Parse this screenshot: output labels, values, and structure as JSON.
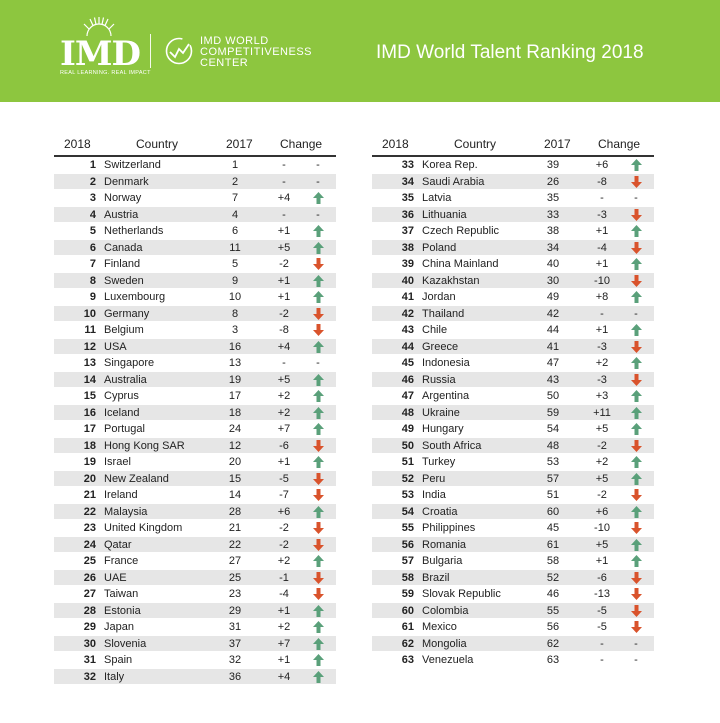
{
  "header": {
    "logo": "IMD",
    "tagline": "REAL LEARNING. REAL IMPACT",
    "center_lines": [
      "IMD WORLD",
      "COMPETITIVENESS",
      "CENTER"
    ],
    "title": "IMD World Talent Ranking 2018"
  },
  "colors": {
    "banner": "#8dc63f",
    "up": "#5aa07a",
    "down": "#d9532c",
    "shade": "#e6e6e6"
  },
  "columns": {
    "rank": "2018",
    "country": "Country",
    "prev": "2017",
    "change": "Change"
  },
  "left_rows": [
    {
      "rank": "1",
      "country": "Switzerland",
      "prev": "1",
      "change": "-",
      "dir": "none"
    },
    {
      "rank": "2",
      "country": "Denmark",
      "prev": "2",
      "change": "-",
      "dir": "none"
    },
    {
      "rank": "3",
      "country": "Norway",
      "prev": "7",
      "change": "+4",
      "dir": "up"
    },
    {
      "rank": "4",
      "country": "Austria",
      "prev": "4",
      "change": "-",
      "dir": "none"
    },
    {
      "rank": "5",
      "country": "Netherlands",
      "prev": "6",
      "change": "+1",
      "dir": "up"
    },
    {
      "rank": "6",
      "country": "Canada",
      "prev": "11",
      "change": "+5",
      "dir": "up"
    },
    {
      "rank": "7",
      "country": "Finland",
      "prev": "5",
      "change": "-2",
      "dir": "down"
    },
    {
      "rank": "8",
      "country": "Sweden",
      "prev": "9",
      "change": "+1",
      "dir": "up"
    },
    {
      "rank": "9",
      "country": "Luxembourg",
      "prev": "10",
      "change": "+1",
      "dir": "up"
    },
    {
      "rank": "10",
      "country": "Germany",
      "prev": "8",
      "change": "-2",
      "dir": "down"
    },
    {
      "rank": "11",
      "country": "Belgium",
      "prev": "3",
      "change": "-8",
      "dir": "down"
    },
    {
      "rank": "12",
      "country": "USA",
      "prev": "16",
      "change": "+4",
      "dir": "up"
    },
    {
      "rank": "13",
      "country": "Singapore",
      "prev": "13",
      "change": "-",
      "dir": "none"
    },
    {
      "rank": "14",
      "country": "Australia",
      "prev": "19",
      "change": "+5",
      "dir": "up"
    },
    {
      "rank": "15",
      "country": "Cyprus",
      "prev": "17",
      "change": "+2",
      "dir": "up"
    },
    {
      "rank": "16",
      "country": "Iceland",
      "prev": "18",
      "change": "+2",
      "dir": "up"
    },
    {
      "rank": "17",
      "country": "Portugal",
      "prev": "24",
      "change": "+7",
      "dir": "up"
    },
    {
      "rank": "18",
      "country": "Hong Kong SAR",
      "prev": "12",
      "change": "-6",
      "dir": "down"
    },
    {
      "rank": "19",
      "country": "Israel",
      "prev": "20",
      "change": "+1",
      "dir": "up"
    },
    {
      "rank": "20",
      "country": "New Zealand",
      "prev": "15",
      "change": "-5",
      "dir": "down"
    },
    {
      "rank": "21",
      "country": "Ireland",
      "prev": "14",
      "change": "-7",
      "dir": "down"
    },
    {
      "rank": "22",
      "country": "Malaysia",
      "prev": "28",
      "change": "+6",
      "dir": "up"
    },
    {
      "rank": "23",
      "country": "United Kingdom",
      "prev": "21",
      "change": "-2",
      "dir": "down"
    },
    {
      "rank": "24",
      "country": "Qatar",
      "prev": "22",
      "change": "-2",
      "dir": "down"
    },
    {
      "rank": "25",
      "country": "France",
      "prev": "27",
      "change": "+2",
      "dir": "up"
    },
    {
      "rank": "26",
      "country": "UAE",
      "prev": "25",
      "change": "-1",
      "dir": "down"
    },
    {
      "rank": "27",
      "country": "Taiwan",
      "prev": "23",
      "change": "-4",
      "dir": "down"
    },
    {
      "rank": "28",
      "country": "Estonia",
      "prev": "29",
      "change": "+1",
      "dir": "up"
    },
    {
      "rank": "29",
      "country": "Japan",
      "prev": "31",
      "change": "+2",
      "dir": "up"
    },
    {
      "rank": "30",
      "country": "Slovenia",
      "prev": "37",
      "change": "+7",
      "dir": "up"
    },
    {
      "rank": "31",
      "country": "Spain",
      "prev": "32",
      "change": "+1",
      "dir": "up"
    },
    {
      "rank": "32",
      "country": "Italy",
      "prev": "36",
      "change": "+4",
      "dir": "up"
    }
  ],
  "right_rows": [
    {
      "rank": "33",
      "country": "Korea Rep.",
      "prev": "39",
      "change": "+6",
      "dir": "up"
    },
    {
      "rank": "34",
      "country": "Saudi Arabia",
      "prev": "26",
      "change": "-8",
      "dir": "down"
    },
    {
      "rank": "35",
      "country": "Latvia",
      "prev": "35",
      "change": "-",
      "dir": "none"
    },
    {
      "rank": "36",
      "country": "Lithuania",
      "prev": "33",
      "change": "-3",
      "dir": "down"
    },
    {
      "rank": "37",
      "country": "Czech Republic",
      "prev": "38",
      "change": "+1",
      "dir": "up"
    },
    {
      "rank": "38",
      "country": "Poland",
      "prev": "34",
      "change": "-4",
      "dir": "down"
    },
    {
      "rank": "39",
      "country": "China Mainland",
      "prev": "40",
      "change": "+1",
      "dir": "up"
    },
    {
      "rank": "40",
      "country": "Kazakhstan",
      "prev": "30",
      "change": "-10",
      "dir": "down"
    },
    {
      "rank": "41",
      "country": "Jordan",
      "prev": "49",
      "change": "+8",
      "dir": "up"
    },
    {
      "rank": "42",
      "country": "Thailand",
      "prev": "42",
      "change": "-",
      "dir": "none"
    },
    {
      "rank": "43",
      "country": "Chile",
      "prev": "44",
      "change": "+1",
      "dir": "up"
    },
    {
      "rank": "44",
      "country": "Greece",
      "prev": "41",
      "change": "-3",
      "dir": "down"
    },
    {
      "rank": "45",
      "country": "Indonesia",
      "prev": "47",
      "change": "+2",
      "dir": "up"
    },
    {
      "rank": "46",
      "country": "Russia",
      "prev": "43",
      "change": "-3",
      "dir": "down"
    },
    {
      "rank": "47",
      "country": "Argentina",
      "prev": "50",
      "change": "+3",
      "dir": "up"
    },
    {
      "rank": "48",
      "country": "Ukraine",
      "prev": "59",
      "change": "+11",
      "dir": "up"
    },
    {
      "rank": "49",
      "country": "Hungary",
      "prev": "54",
      "change": "+5",
      "dir": "up"
    },
    {
      "rank": "50",
      "country": "South Africa",
      "prev": "48",
      "change": "-2",
      "dir": "down"
    },
    {
      "rank": "51",
      "country": "Turkey",
      "prev": "53",
      "change": "+2",
      "dir": "up"
    },
    {
      "rank": "52",
      "country": "Peru",
      "prev": "57",
      "change": "+5",
      "dir": "up"
    },
    {
      "rank": "53",
      "country": "India",
      "prev": "51",
      "change": "-2",
      "dir": "down"
    },
    {
      "rank": "54",
      "country": "Croatia",
      "prev": "60",
      "change": "+6",
      "dir": "up"
    },
    {
      "rank": "55",
      "country": "Philippines",
      "prev": "45",
      "change": "-10",
      "dir": "down"
    },
    {
      "rank": "56",
      "country": "Romania",
      "prev": "61",
      "change": "+5",
      "dir": "up"
    },
    {
      "rank": "57",
      "country": "Bulgaria",
      "prev": "58",
      "change": "+1",
      "dir": "up"
    },
    {
      "rank": "58",
      "country": "Brazil",
      "prev": "52",
      "change": "-6",
      "dir": "down"
    },
    {
      "rank": "59",
      "country": "Slovak Republic",
      "prev": "46",
      "change": "-13",
      "dir": "down"
    },
    {
      "rank": "60",
      "country": "Colombia",
      "prev": "55",
      "change": "-5",
      "dir": "down"
    },
    {
      "rank": "61",
      "country": "Mexico",
      "prev": "56",
      "change": "-5",
      "dir": "down"
    },
    {
      "rank": "62",
      "country": "Mongolia",
      "prev": "62",
      "change": "-",
      "dir": "none"
    },
    {
      "rank": "63",
      "country": "Venezuela",
      "prev": "63",
      "change": "-",
      "dir": "none"
    }
  ]
}
